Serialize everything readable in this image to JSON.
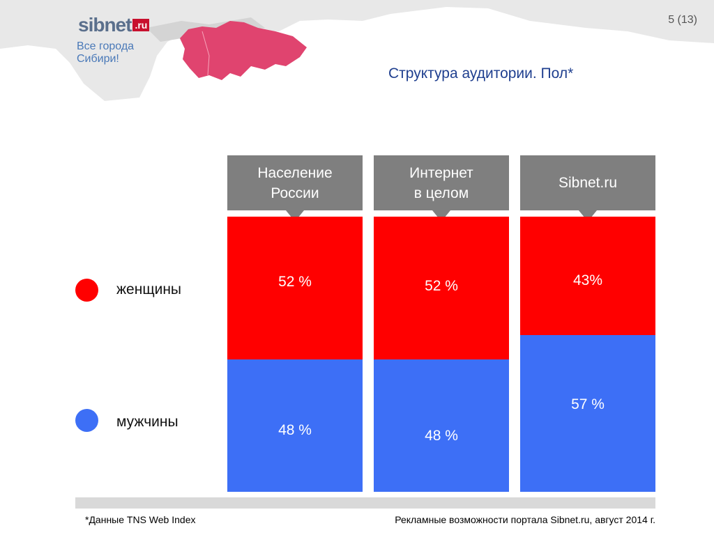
{
  "header": {
    "logo_main": "sibnet",
    "logo_ru": ".ru",
    "slogan_line1": "Все города",
    "slogan_line2": "Сибири!",
    "page_number": "5 (13)",
    "title": "Структура аудитории. Пол*"
  },
  "colors": {
    "women": "#ff0000",
    "men": "#3d6ff6",
    "header_box": "#7f7f7f",
    "map_highlight": "#e0446f",
    "title": "#1f3f8f"
  },
  "legend": [
    {
      "label": "женщины",
      "color": "#ff0000"
    },
    {
      "label": "мужчины",
      "color": "#3d6ff6"
    }
  ],
  "chart_data": {
    "type": "bar",
    "stacked": true,
    "normalized": true,
    "categories": [
      "Население России",
      "Интернет в целом",
      "Sibnet.ru"
    ],
    "category_lines": [
      [
        "Население",
        "России"
      ],
      [
        "Интернет",
        "в целом"
      ],
      [
        "Sibnet.ru"
      ]
    ],
    "series": [
      {
        "name": "женщины",
        "values": [
          52,
          52,
          43
        ],
        "labels": [
          "52 %",
          "52 %",
          "43%"
        ],
        "color": "#ff0000"
      },
      {
        "name": "мужчины",
        "values": [
          48,
          48,
          57
        ],
        "labels": [
          "48 %",
          "48 %",
          "57 %"
        ],
        "color": "#3d6ff6"
      }
    ],
    "unit": "%",
    "ylim": [
      0,
      100
    ]
  },
  "footer": {
    "note": "*Данные TNS Web Index",
    "source": "Рекламные возможности портала Sibnet.ru, август 2014 г."
  }
}
